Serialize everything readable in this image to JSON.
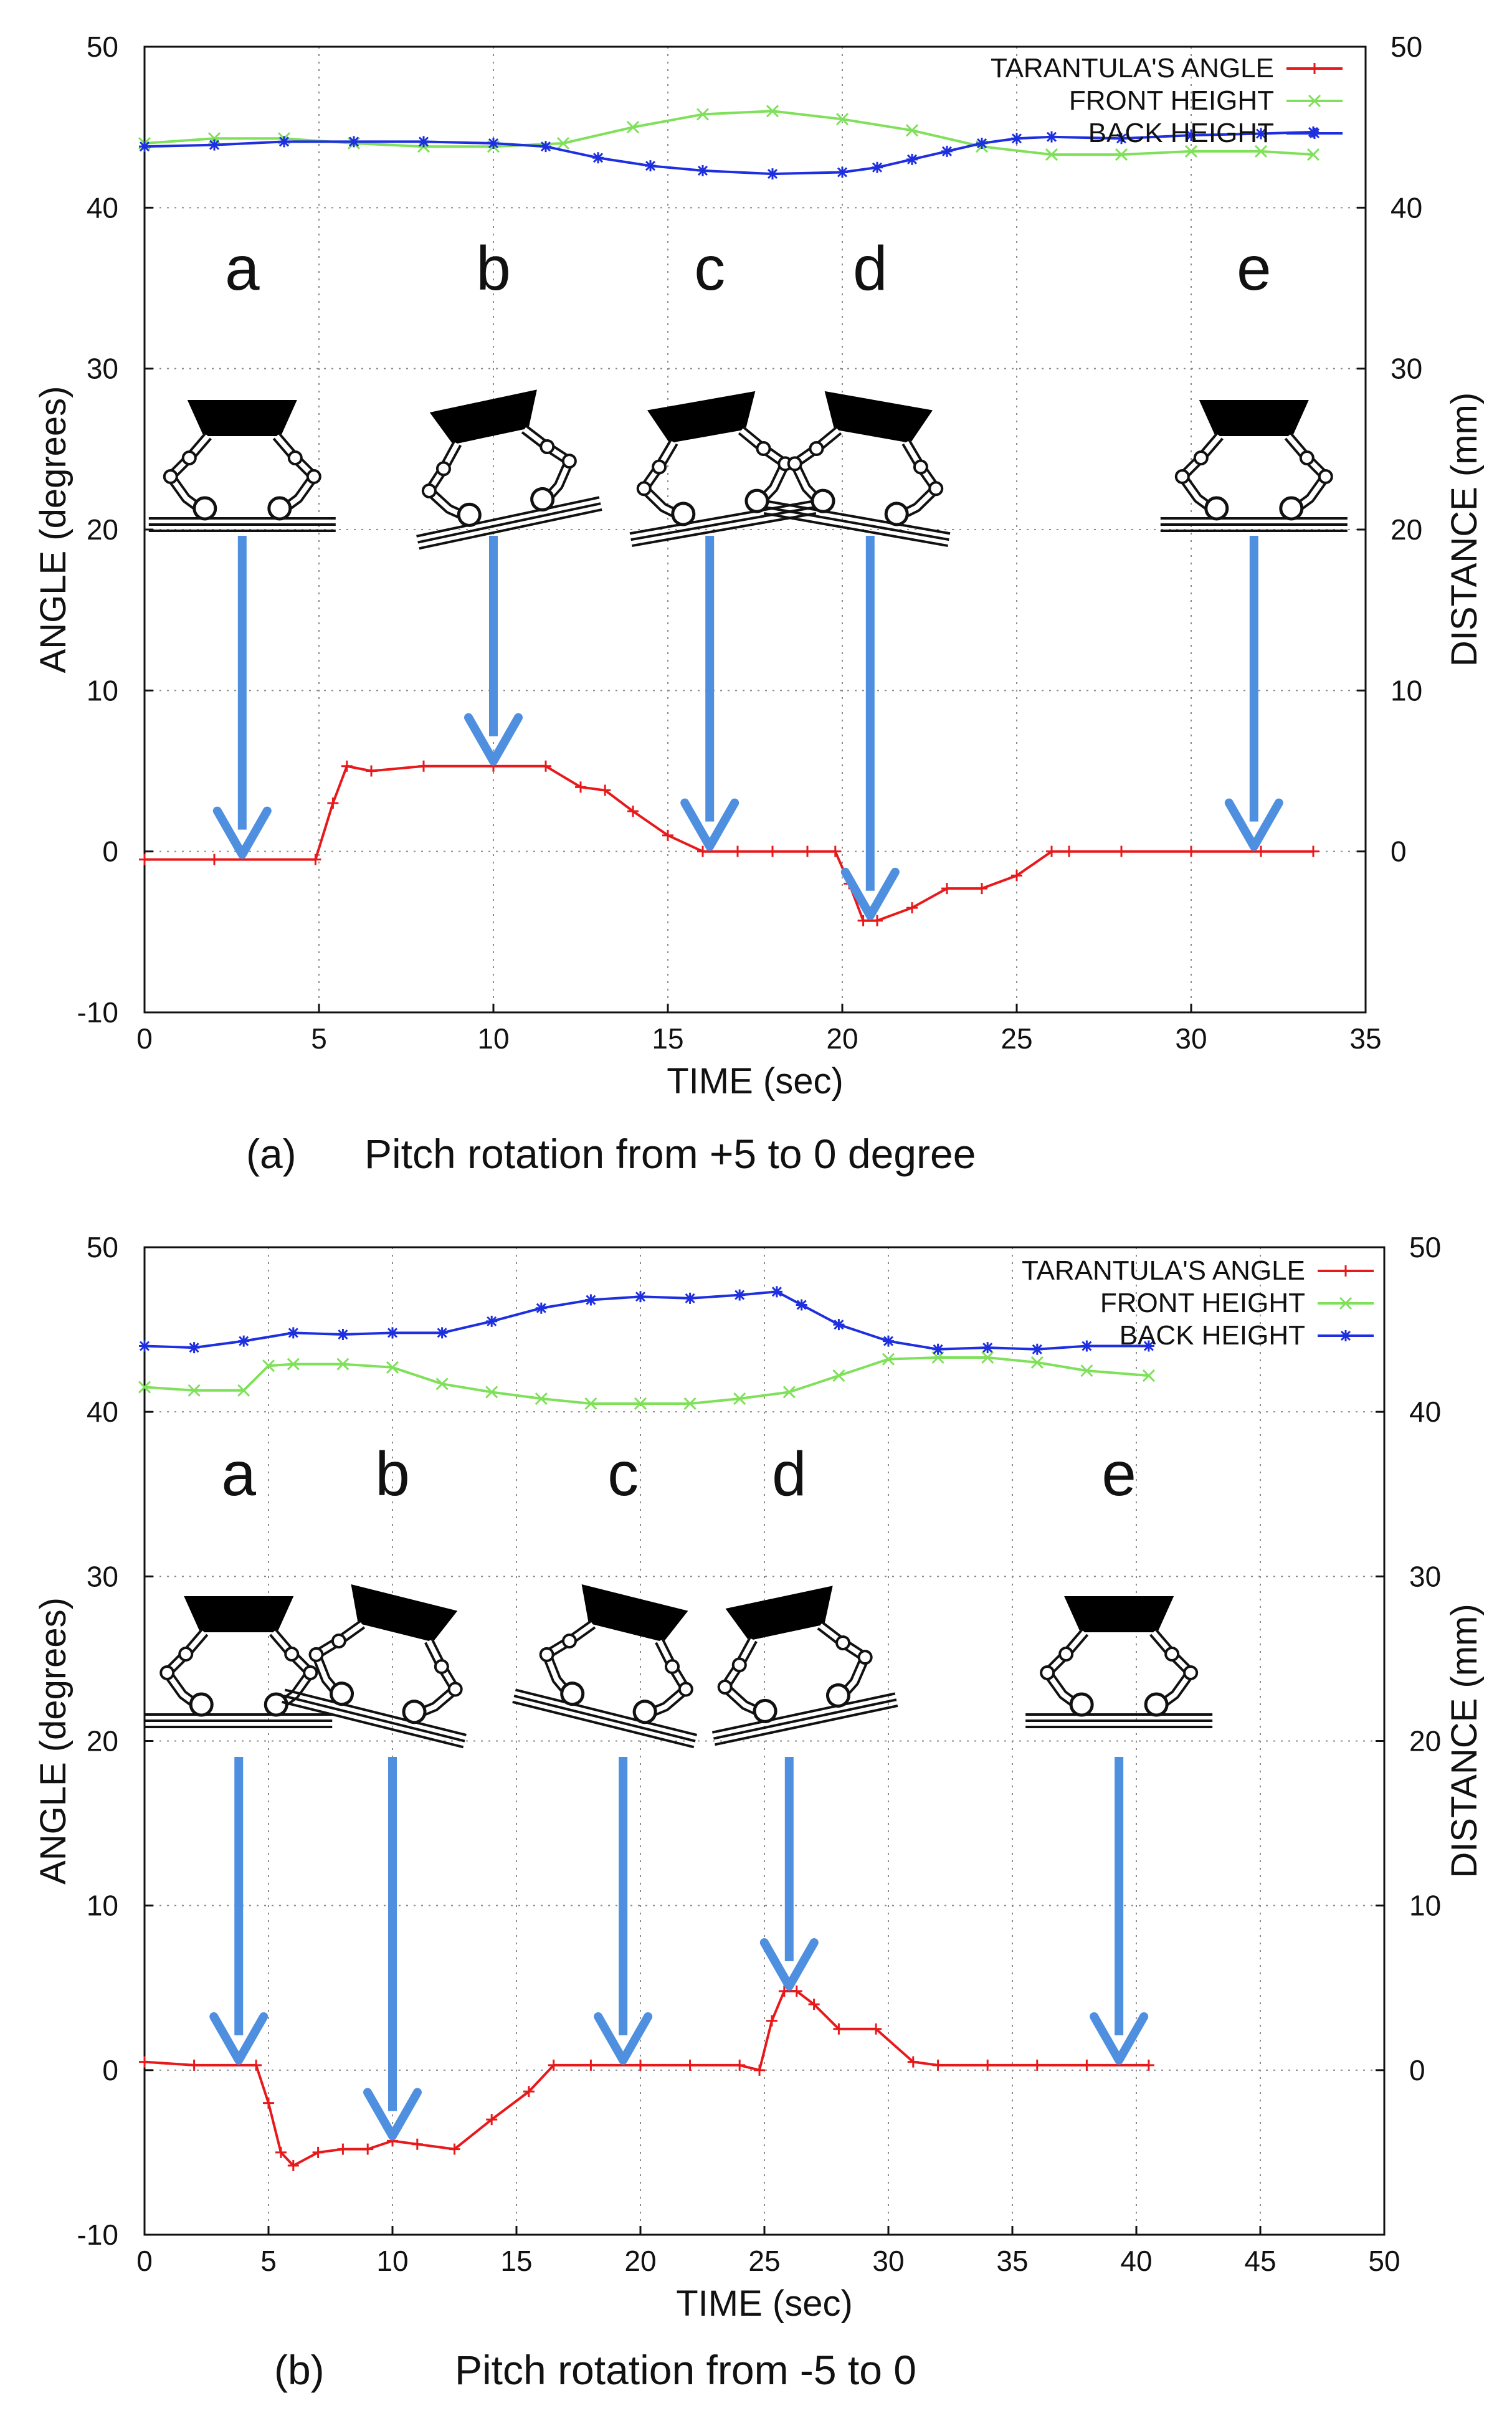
{
  "chart_data": [
    {
      "id": "a",
      "type": "line",
      "caption_label": "(a)",
      "caption_text": "Pitch rotation from +5 to 0 degree",
      "xlabel": "TIME (sec)",
      "ylabel": "ANGLE (degrees)",
      "y2label": "DISTANCE (mm)",
      "xlim": [
        0,
        35
      ],
      "ylim": [
        -10,
        50
      ],
      "xticks": [
        "0",
        "5",
        "10",
        "15",
        "20",
        "25",
        "30",
        "35"
      ],
      "yticks": [
        "-10",
        "0",
        "10",
        "20",
        "30",
        "40",
        "50"
      ],
      "y2ticks": [
        "0",
        "10",
        "20",
        "30",
        "40",
        "50"
      ],
      "grid": true,
      "legend_position": "top-right",
      "phase_labels": [
        "a",
        "b",
        "c",
        "d",
        "e"
      ],
      "phase_times": [
        2.8,
        10.0,
        16.2,
        20.8,
        31.8
      ],
      "phase_tilt": [
        0,
        -12,
        -10,
        10,
        0
      ],
      "series": [
        {
          "name": "TARANTULA'S ANGLE",
          "color": "#e8191b",
          "marker": "+",
          "x": [
            0,
            2,
            4.9,
            5.4,
            5.8,
            6.5,
            8,
            10,
            11.5,
            12.5,
            13.2,
            14,
            15,
            16,
            17,
            18,
            19,
            19.8,
            20.2,
            20.6,
            21,
            22,
            23,
            24,
            25,
            26,
            26.5,
            28,
            30,
            32,
            33.5
          ],
          "values": [
            -0.5,
            -0.5,
            -0.5,
            3.0,
            5.3,
            5.0,
            5.3,
            5.3,
            5.3,
            4.0,
            3.8,
            2.5,
            1.0,
            0.0,
            0.0,
            0.0,
            0.0,
            0.0,
            -2.0,
            -4.3,
            -4.3,
            -3.5,
            -2.3,
            -2.3,
            -1.5,
            0.0,
            0.0,
            0.0,
            0.0,
            0.0,
            0.0
          ]
        },
        {
          "name": "FRONT HEIGHT",
          "color": "#7fe05a",
          "marker": "x",
          "x": [
            0,
            2,
            4,
            6,
            8,
            10,
            12,
            14,
            16,
            18,
            20,
            22,
            24,
            26,
            28,
            30,
            32,
            33.5
          ],
          "values": [
            44.0,
            44.3,
            44.3,
            44.0,
            43.8,
            43.8,
            44.0,
            45.0,
            45.8,
            46.0,
            45.5,
            44.8,
            43.8,
            43.3,
            43.3,
            43.5,
            43.5,
            43.3
          ]
        },
        {
          "name": "BACK HEIGHT",
          "color": "#1e2fe0",
          "marker": "*",
          "x": [
            0,
            2,
            4,
            6,
            8,
            10,
            11.5,
            13,
            14.5,
            16,
            18,
            20,
            21,
            22,
            23,
            24,
            25,
            26,
            28,
            30,
            32,
            33.5
          ],
          "values": [
            43.8,
            43.9,
            44.1,
            44.1,
            44.1,
            44.0,
            43.8,
            43.1,
            42.6,
            42.3,
            42.1,
            42.2,
            42.5,
            43.0,
            43.5,
            44.0,
            44.3,
            44.4,
            44.3,
            44.5,
            44.6,
            44.7
          ]
        }
      ]
    },
    {
      "id": "b",
      "type": "line",
      "caption_label": "(b)",
      "caption_text": "Pitch rotation from -5 to 0",
      "xlabel": "TIME (sec)",
      "ylabel": "ANGLE (degrees)",
      "y2label": "DISTANCE (mm)",
      "xlim": [
        0,
        50
      ],
      "ylim": [
        -10,
        50
      ],
      "xticks": [
        "0",
        "5",
        "10",
        "15",
        "20",
        "25",
        "30",
        "35",
        "40",
        "45",
        "50"
      ],
      "yticks": [
        "-10",
        "0",
        "10",
        "20",
        "30",
        "40",
        "50"
      ],
      "y2ticks": [
        "0",
        "10",
        "20",
        "30",
        "40",
        "50"
      ],
      "grid": true,
      "legend_position": "top-right",
      "phase_labels": [
        "a",
        "b",
        "c",
        "d",
        "e"
      ],
      "phase_times": [
        3.8,
        10.0,
        19.3,
        26.0,
        39.3
      ],
      "phase_tilt": [
        0,
        14,
        14,
        -12,
        0
      ],
      "series": [
        {
          "name": "TARANTULA'S ANGLE",
          "color": "#e8191b",
          "marker": "+",
          "x": [
            0,
            2,
            4.5,
            5.0,
            5.5,
            6.0,
            7,
            8,
            9,
            10,
            11,
            12.5,
            14,
            15.5,
            16.5,
            18,
            20,
            22,
            24,
            24.8,
            25.3,
            25.8,
            26.3,
            27,
            28,
            29.5,
            31,
            32,
            34,
            36,
            38,
            40.5
          ],
          "values": [
            0.5,
            0.3,
            0.3,
            -2.0,
            -5.0,
            -5.8,
            -5.0,
            -4.8,
            -4.8,
            -4.3,
            -4.5,
            -4.8,
            -3.0,
            -1.3,
            0.3,
            0.3,
            0.3,
            0.3,
            0.3,
            0.0,
            3.0,
            4.8,
            4.8,
            4.0,
            2.5,
            2.5,
            0.5,
            0.3,
            0.3,
            0.3,
            0.3,
            0.3
          ]
        },
        {
          "name": "FRONT HEIGHT",
          "color": "#7fe05a",
          "marker": "x",
          "x": [
            0,
            2,
            4,
            5,
            6,
            8,
            10,
            12,
            14,
            16,
            18,
            20,
            22,
            24,
            26,
            28,
            30,
            32,
            34,
            36,
            38,
            40.5
          ],
          "values": [
            41.5,
            41.3,
            41.3,
            42.8,
            42.9,
            42.9,
            42.7,
            41.7,
            41.2,
            40.8,
            40.5,
            40.5,
            40.5,
            40.8,
            41.2,
            42.2,
            43.2,
            43.3,
            43.3,
            43.0,
            42.5,
            42.2
          ]
        },
        {
          "name": "BACK HEIGHT",
          "color": "#1e2fe0",
          "marker": "*",
          "x": [
            0,
            2,
            4,
            6,
            8,
            10,
            12,
            14,
            16,
            18,
            20,
            22,
            24,
            25.5,
            26.5,
            28,
            30,
            32,
            34,
            36,
            38,
            40.5
          ],
          "values": [
            44.0,
            43.9,
            44.3,
            44.8,
            44.7,
            44.8,
            44.8,
            45.5,
            46.3,
            46.8,
            47.0,
            46.9,
            47.1,
            47.3,
            46.5,
            45.3,
            44.3,
            43.8,
            43.9,
            43.8,
            44.0,
            44.0
          ]
        }
      ]
    }
  ]
}
